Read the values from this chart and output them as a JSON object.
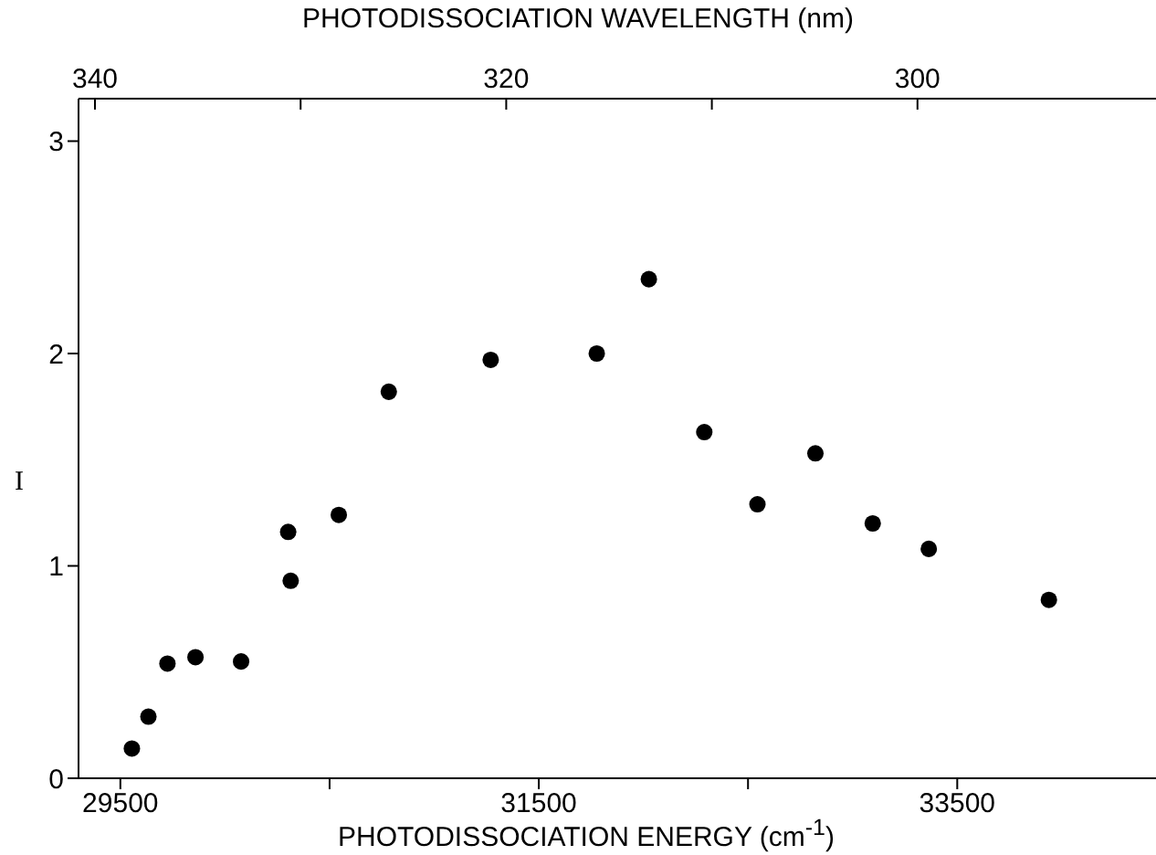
{
  "chart_data": {
    "type": "scatter",
    "xlabel": "PHOTODISSOCIATION ENERGY (cm$^{-1}$)",
    "x2label": "PHOTODISSOCIATION WAVELENGTH (nm)",
    "ylabel": "I",
    "x": [
      29555,
      29634,
      29725,
      29859,
      30077,
      30302,
      30314,
      30544,
      30783,
      31270,
      31777,
      32026,
      32291,
      32545,
      32822,
      33096,
      33364,
      33938
    ],
    "series": [
      {
        "color": "#000000",
        "values": [
          0.14,
          0.29,
          0.54,
          0.57,
          0.55,
          1.16,
          0.93,
          1.24,
          1.82,
          1.97,
          2.0,
          2.35,
          1.63,
          1.29,
          1.53,
          1.2,
          1.08,
          0.84
        ]
      }
    ],
    "xlim": [
      29300,
      34450
    ],
    "xticks": [
      29500,
      {
        "value": 30500,
        "label": null
      },
      31500,
      {
        "value": 32500,
        "label": null
      },
      33500
    ],
    "x2lim": [
      340.8,
      288.4
    ],
    "x2ticks": [
      340,
      {
        "value": 330,
        "label": null
      },
      320,
      {
        "value": 310,
        "label": null
      },
      300
    ],
    "ylim": [
      0,
      3.2
    ],
    "yticks": [
      0,
      1,
      2,
      3
    ],
    "marker": "circle",
    "grid": false
  }
}
